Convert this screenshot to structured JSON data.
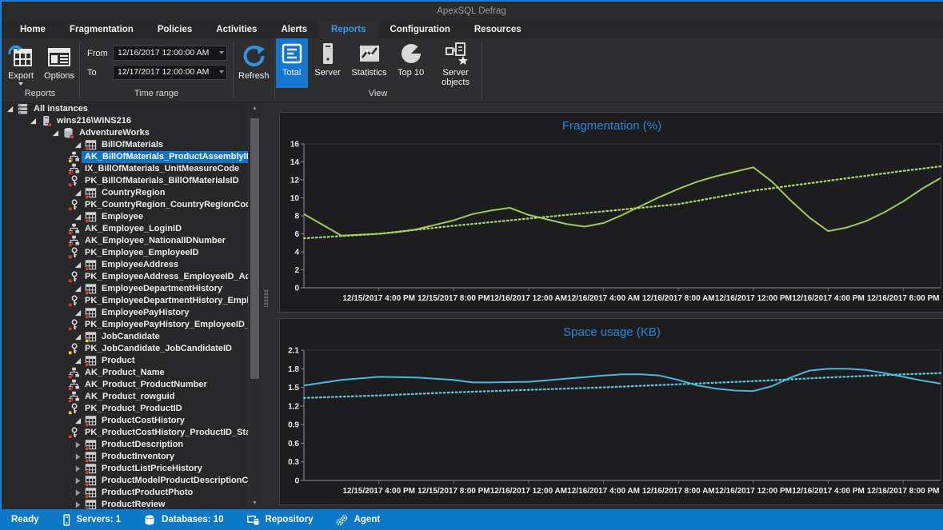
{
  "window": {
    "title": "ApexSQL Defrag"
  },
  "tabs": {
    "items": [
      "Home",
      "Fragmentation",
      "Policies",
      "Activities",
      "Alerts",
      "Reports",
      "Configuration",
      "Resources"
    ],
    "active": "Reports"
  },
  "ribbon": {
    "export_label": "Export",
    "options_label": "Options",
    "group_reports": "Reports",
    "from_label": "From",
    "from_value": "12/16/2017 12:00:00 AM",
    "to_label": "To",
    "to_value": "12/17/2017 12:00:00 AM",
    "group_time_range": "Time range",
    "refresh_label": "Refresh",
    "group_view": "View",
    "view_buttons": [
      {
        "label": "Total",
        "icon": "total-icon",
        "active": true
      },
      {
        "label": "Server",
        "icon": "server-view-icon",
        "active": false
      },
      {
        "label": "Statistics",
        "icon": "statistics-icon",
        "active": false
      },
      {
        "label": "Top 10",
        "icon": "top10-icon",
        "active": false
      },
      {
        "label": "Server objects",
        "icon": "server-objects-icon",
        "active": false
      }
    ]
  },
  "tree": {
    "items": [
      {
        "label": "All instances",
        "level": 0,
        "icon": "servers",
        "badge": null,
        "expander": "open",
        "selected": false
      },
      {
        "label": "wins216\\WINS216",
        "level": 1,
        "icon": "server",
        "badge": "red",
        "expander": "open",
        "selected": false
      },
      {
        "label": "AdventureWorks",
        "level": 2,
        "icon": "database",
        "badge": "red",
        "expander": "open",
        "selected": false
      },
      {
        "label": "BillOfMaterials",
        "level": 3,
        "icon": "table",
        "badge": "red",
        "expander": "open",
        "selected": false
      },
      {
        "label": "AK_BillOfMaterials_ProductAssemblyID_Comp",
        "level": 4,
        "icon": "index",
        "badge": "yellow",
        "expander": null,
        "selected": true
      },
      {
        "label": "IX_BillOfMaterials_UnitMeasureCode",
        "level": 4,
        "icon": "index",
        "badge": "red",
        "expander": null,
        "selected": false
      },
      {
        "label": "PK_BillOfMaterials_BillOfMaterialsID",
        "level": 4,
        "icon": "key",
        "badge": "red",
        "expander": null,
        "selected": false
      },
      {
        "label": "CountryRegion",
        "level": 3,
        "icon": "table",
        "badge": "red",
        "expander": "open",
        "selected": false
      },
      {
        "label": "PK_CountryRegion_CountryRegionCode",
        "level": 4,
        "icon": "key",
        "badge": "red",
        "expander": null,
        "selected": false
      },
      {
        "label": "Employee",
        "level": 3,
        "icon": "table",
        "badge": "red",
        "expander": "open",
        "selected": false
      },
      {
        "label": "AK_Employee_LoginID",
        "level": 4,
        "icon": "index",
        "badge": "red",
        "expander": null,
        "selected": false
      },
      {
        "label": "AK_Employee_NationalIDNumber",
        "level": 4,
        "icon": "index",
        "badge": "red",
        "expander": null,
        "selected": false
      },
      {
        "label": "PK_Employee_EmployeeID",
        "level": 4,
        "icon": "key",
        "badge": "red",
        "expander": null,
        "selected": false
      },
      {
        "label": "EmployeeAddress",
        "level": 3,
        "icon": "table",
        "badge": "red",
        "expander": "open",
        "selected": false
      },
      {
        "label": "PK_EmployeeAddress_EmployeeID_AddressID",
        "level": 4,
        "icon": "key",
        "badge": "red",
        "expander": null,
        "selected": false
      },
      {
        "label": "EmployeeDepartmentHistory",
        "level": 3,
        "icon": "table",
        "badge": "red",
        "expander": "open",
        "selected": false
      },
      {
        "label": "PK_EmployeeDepartmentHistory_EmployeeID",
        "level": 4,
        "icon": "key",
        "badge": "red",
        "expander": null,
        "selected": false
      },
      {
        "label": "EmployeePayHistory",
        "level": 3,
        "icon": "table",
        "badge": "red",
        "expander": "open",
        "selected": false
      },
      {
        "label": "PK_EmployeePayHistory_EmployeeID_Rate",
        "level": 4,
        "icon": "key",
        "badge": "red",
        "expander": null,
        "selected": false
      },
      {
        "label": "JobCandidate",
        "level": 3,
        "icon": "table",
        "badge": "yellow",
        "expander": "open",
        "selected": false
      },
      {
        "label": "PK_JobCandidate_JobCandidateID",
        "level": 4,
        "icon": "key",
        "badge": "yellow",
        "expander": null,
        "selected": false
      },
      {
        "label": "Product",
        "level": 3,
        "icon": "table",
        "badge": "red",
        "expander": "open",
        "selected": false
      },
      {
        "label": "AK_Product_Name",
        "level": 4,
        "icon": "index",
        "badge": "red",
        "expander": null,
        "selected": false
      },
      {
        "label": "AK_Product_ProductNumber",
        "level": 4,
        "icon": "index",
        "badge": "red",
        "expander": null,
        "selected": false
      },
      {
        "label": "AK_Product_rowguid",
        "level": 4,
        "icon": "index",
        "badge": "red",
        "expander": null,
        "selected": false
      },
      {
        "label": "PK_Product_ProductID",
        "level": 4,
        "icon": "key",
        "badge": "yellow",
        "expander": null,
        "selected": false
      },
      {
        "label": "ProductCostHistory",
        "level": 3,
        "icon": "table",
        "badge": "red",
        "expander": "open",
        "selected": false
      },
      {
        "label": "PK_ProductCostHistory_ProductID_StartDate",
        "level": 4,
        "icon": "key",
        "badge": "red",
        "expander": null,
        "selected": false
      },
      {
        "label": "ProductDescription",
        "level": 3,
        "icon": "table",
        "badge": "red",
        "expander": "closed",
        "selected": false
      },
      {
        "label": "ProductInventory",
        "level": 3,
        "icon": "table",
        "badge": "red",
        "expander": "closed",
        "selected": false
      },
      {
        "label": "ProductListPriceHistory",
        "level": 3,
        "icon": "table",
        "badge": "red",
        "expander": "closed",
        "selected": false
      },
      {
        "label": "ProductModelProductDescriptionCulture",
        "level": 3,
        "icon": "table",
        "badge": "red",
        "expander": "closed",
        "selected": false
      },
      {
        "label": "ProductProductPhoto",
        "level": 3,
        "icon": "table",
        "badge": "red",
        "expander": "closed",
        "selected": false
      },
      {
        "label": "ProductReview",
        "level": 3,
        "icon": "table",
        "badge": "red",
        "expander": "closed",
        "selected": false
      }
    ]
  },
  "statusbar": {
    "items": [
      {
        "icon": null,
        "label": "Ready",
        "interactable": false
      },
      {
        "icon": "server-icon",
        "label": "Servers: 1",
        "interactable": false
      },
      {
        "icon": "database-icon",
        "label": "Databases: 10",
        "interactable": false
      },
      {
        "icon": "repository-icon",
        "label": "Repository",
        "interactable": true
      },
      {
        "icon": "agent-icon",
        "label": "Agent",
        "interactable": true
      }
    ]
  },
  "chart_data": [
    {
      "type": "line",
      "title": "Fragmentation (%)",
      "title_color": "#2a86d8",
      "legend": "none",
      "grid": false,
      "x_axis": {
        "range_hours": [
          0,
          34
        ],
        "tick_hours": [
          4,
          8,
          12,
          16,
          20,
          24,
          28,
          32
        ],
        "tick_labels": [
          "12/15/2017 4:00 PM",
          "12/15/2017 8:00 PM",
          "12/16/2017 12:00 AM",
          "12/16/2017 4:00 AM",
          "12/16/2017 8:00 AM",
          "12/16/2017 12:00 PM",
          "12/16/2017 4:00 PM",
          "12/16/2017 8:00 PM"
        ]
      },
      "y_axis": {
        "min": 0,
        "max": 16,
        "ticks": [
          0,
          2,
          4,
          6,
          8,
          10,
          12,
          14,
          16
        ]
      },
      "series": [
        {
          "style": "solid",
          "color": "#9ccb5a",
          "points": [
            [
              0,
              8.2
            ],
            [
              1,
              7.0
            ],
            [
              2,
              5.8
            ],
            [
              3,
              5.9
            ],
            [
              4,
              6.0
            ],
            [
              5,
              6.2
            ],
            [
              6,
              6.5
            ],
            [
              7,
              7.0
            ],
            [
              8,
              7.5
            ],
            [
              9,
              8.2
            ],
            [
              10,
              8.6
            ],
            [
              11,
              8.9
            ],
            [
              12,
              8.1
            ],
            [
              13,
              7.6
            ],
            [
              14,
              7.1
            ],
            [
              15,
              6.8
            ],
            [
              16,
              7.2
            ],
            [
              17,
              8.1
            ],
            [
              18,
              9.1
            ],
            [
              19,
              10.1
            ],
            [
              20,
              11.0
            ],
            [
              21,
              11.8
            ],
            [
              22,
              12.4
            ],
            [
              23,
              12.9
            ],
            [
              24,
              13.4
            ],
            [
              25,
              11.8
            ],
            [
              26,
              9.7
            ],
            [
              27,
              7.8
            ],
            [
              28,
              6.3
            ],
            [
              29,
              6.7
            ],
            [
              30,
              7.4
            ],
            [
              31,
              8.4
            ],
            [
              32,
              9.6
            ],
            [
              33,
              11.0
            ],
            [
              34,
              12.2
            ]
          ]
        },
        {
          "style": "dotted",
          "color": "#aad660",
          "points": [
            [
              0,
              5.5
            ],
            [
              4,
              6.0
            ],
            [
              8,
              6.9
            ],
            [
              12,
              7.7
            ],
            [
              16,
              8.5
            ],
            [
              20,
              9.3
            ],
            [
              24,
              10.8
            ],
            [
              28,
              11.9
            ],
            [
              32,
              13.0
            ],
            [
              34,
              13.5
            ]
          ]
        }
      ]
    },
    {
      "type": "line",
      "title": "Space usage (KB)",
      "title_color": "#2a86d8",
      "legend": "none",
      "grid": false,
      "x_axis": {
        "range_hours": [
          0,
          34
        ],
        "tick_hours": [
          4,
          8,
          12,
          16,
          20,
          24,
          28,
          32
        ],
        "tick_labels": [
          "12/15/2017 4:00 PM",
          "12/15/2017 8:00 PM",
          "12/16/2017 12:00 AM",
          "12/16/2017 4:00 AM",
          "12/16/2017 8:00 AM",
          "12/16/2017 12:00 PM",
          "12/16/2017 4:00 PM",
          "12/16/2017 8:00 PM"
        ]
      },
      "y_axis": {
        "min": 0,
        "max": 2.1,
        "ticks": [
          0,
          0.3,
          0.6,
          0.9,
          1.2,
          1.5,
          1.8,
          2.1
        ]
      },
      "series": [
        {
          "style": "solid",
          "color": "#49b9da",
          "points": [
            [
              0,
              1.53
            ],
            [
              2,
              1.62
            ],
            [
              4,
              1.67
            ],
            [
              6,
              1.66
            ],
            [
              8,
              1.62
            ],
            [
              9,
              1.58
            ],
            [
              10,
              1.58
            ],
            [
              12,
              1.59
            ],
            [
              14,
              1.64
            ],
            [
              16,
              1.69
            ],
            [
              17,
              1.71
            ],
            [
              18,
              1.71
            ],
            [
              19,
              1.69
            ],
            [
              20,
              1.62
            ],
            [
              21,
              1.53
            ],
            [
              22,
              1.48
            ],
            [
              23,
              1.45
            ],
            [
              24,
              1.44
            ],
            [
              25,
              1.52
            ],
            [
              26,
              1.66
            ],
            [
              27,
              1.77
            ],
            [
              28,
              1.8
            ],
            [
              29,
              1.8
            ],
            [
              30,
              1.78
            ],
            [
              31,
              1.73
            ],
            [
              32,
              1.67
            ],
            [
              33,
              1.61
            ],
            [
              34,
              1.56
            ]
          ]
        },
        {
          "style": "dotted",
          "color": "#58c6e0",
          "points": [
            [
              0,
              1.33
            ],
            [
              4,
              1.37
            ],
            [
              8,
              1.42
            ],
            [
              12,
              1.46
            ],
            [
              16,
              1.5
            ],
            [
              20,
              1.55
            ],
            [
              24,
              1.6
            ],
            [
              28,
              1.66
            ],
            [
              32,
              1.71
            ],
            [
              34,
              1.73
            ]
          ]
        }
      ]
    }
  ]
}
